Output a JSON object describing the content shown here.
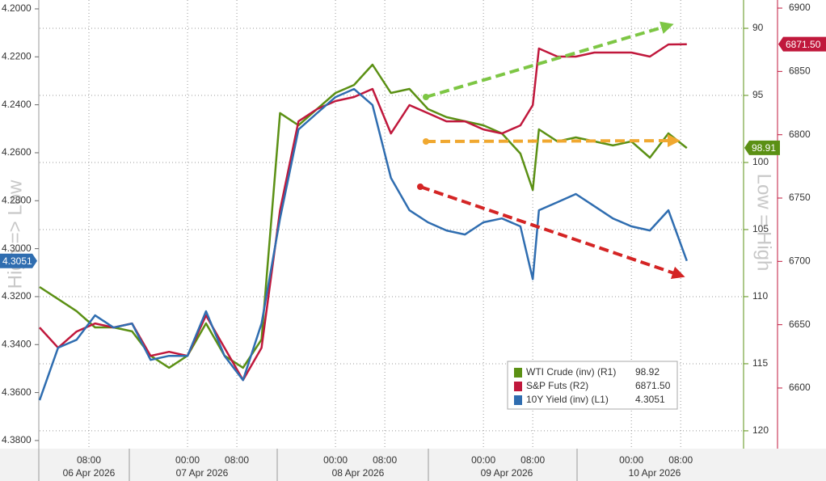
{
  "chart_data": {
    "type": "line",
    "y_label": "High => Low",
    "y2_label": "Low = High",
    "x": [
      0,
      3,
      6,
      9,
      12,
      15,
      18,
      21,
      24,
      27,
      30,
      33,
      36,
      39,
      42,
      45,
      48,
      51,
      54,
      57,
      60,
      63,
      66,
      69,
      72,
      75,
      78,
      80,
      81,
      84,
      87,
      90,
      93,
      96,
      99,
      102,
      105
    ],
    "xlim": [
      0,
      114.2
    ],
    "xticks": [
      {
        "value": 8,
        "label": "08:00"
      },
      {
        "value": 24,
        "label": "00:00"
      },
      {
        "value": 32,
        "label": "08:00"
      },
      {
        "value": 48,
        "label": "00:00"
      },
      {
        "value": 56,
        "label": "08:00"
      },
      {
        "value": 72,
        "label": "00:00"
      },
      {
        "value": 80,
        "label": "08:00"
      },
      {
        "value": 96,
        "label": "00:00"
      },
      {
        "value": 104,
        "label": "08:00"
      }
    ],
    "date_labels": [
      "06 Apr 2026",
      "07 Apr 2026",
      "08 Apr 2026",
      "09 Apr 2026",
      "10 Apr 2026"
    ],
    "ylim": [
      4.3834,
      4.1963
    ],
    "yticks": [
      {
        "value": 4.2,
        "label": "4.2000"
      },
      {
        "value": 4.22,
        "label": "4.2200"
      },
      {
        "value": 4.24,
        "label": "4.2400"
      },
      {
        "value": 4.26,
        "label": "4.2600"
      },
      {
        "value": 4.28,
        "label": "4.2800"
      },
      {
        "value": 4.3,
        "label": "4.3000"
      },
      {
        "value": 4.32,
        "label": "4.3200"
      },
      {
        "value": 4.34,
        "label": "4.3400"
      },
      {
        "value": 4.36,
        "label": "4.3600"
      },
      {
        "value": 4.38,
        "label": "4.3800"
      }
    ],
    "y2lim": [
      121.33,
      87.89
    ],
    "y2ticks": [
      90,
      95,
      100,
      105,
      110,
      115,
      120
    ],
    "y3lim": [
      6552.1,
      6906.4
    ],
    "y3ticks": [
      6600,
      6650,
      6700,
      6750,
      6800,
      6850,
      6900
    ],
    "grid": true,
    "series": [
      {
        "name": "WTI Crude (inv) (R1)",
        "color": "#5b9014",
        "axis": "y2",
        "values": [
          109.28,
          110.18,
          111.08,
          112.29,
          112.29,
          112.59,
          114.4,
          115.3,
          114.4,
          111.99,
          114.4,
          115.3,
          113.19,
          96.32,
          97.23,
          96.02,
          94.82,
          94.22,
          92.71,
          94.82,
          94.52,
          96.02,
          96.62,
          96.93,
          97.23,
          97.83,
          99.34,
          102.05,
          97.53,
          98.43,
          98.13,
          98.43,
          98.73,
          98.43,
          99.64,
          97.83,
          98.92
        ],
        "legend_value": 98.92,
        "tag_value": 98.91
      },
      {
        "name": "S&P Futs (R2)",
        "color": "#c0183c",
        "axis": "y3",
        "values": [
          6647.8,
          6631.8,
          6644.6,
          6651.0,
          6647.8,
          6651.0,
          6625.4,
          6628.6,
          6625.4,
          6657.4,
          6631.8,
          6606.3,
          6631.8,
          6740.4,
          6810.6,
          6820.2,
          6826.6,
          6829.8,
          6836.2,
          6801.0,
          6823.4,
          6817.0,
          6810.6,
          6810.6,
          6804.2,
          6801.0,
          6807.4,
          6823.4,
          6868.1,
          6861.7,
          6861.7,
          6864.9,
          6864.9,
          6864.9,
          6861.7,
          6871.3,
          6871.5
        ],
        "legend_value": 6871.5,
        "legend_value_label": "6871.50",
        "tag_value": 6871.5,
        "tag_value_label": "6871.50"
      },
      {
        "name": "10Y Yield (inv) (L1)",
        "color": "#2f6db0",
        "axis": "y",
        "values": [
          4.3632,
          4.3413,
          4.338,
          4.3278,
          4.3329,
          4.3312,
          4.3464,
          4.3447,
          4.3447,
          4.3261,
          4.3447,
          4.3548,
          4.3312,
          4.2874,
          4.2503,
          4.2435,
          4.2368,
          4.2334,
          4.2401,
          4.2705,
          4.284,
          4.289,
          4.2924,
          4.2941,
          4.289,
          4.2874,
          4.2907,
          4.3127,
          4.284,
          4.2806,
          4.2772,
          4.2823,
          4.2874,
          4.2907,
          4.2924,
          4.284,
          4.3051
        ],
        "legend_value": 4.3051,
        "tag_value": 4.3051
      }
    ]
  }
}
